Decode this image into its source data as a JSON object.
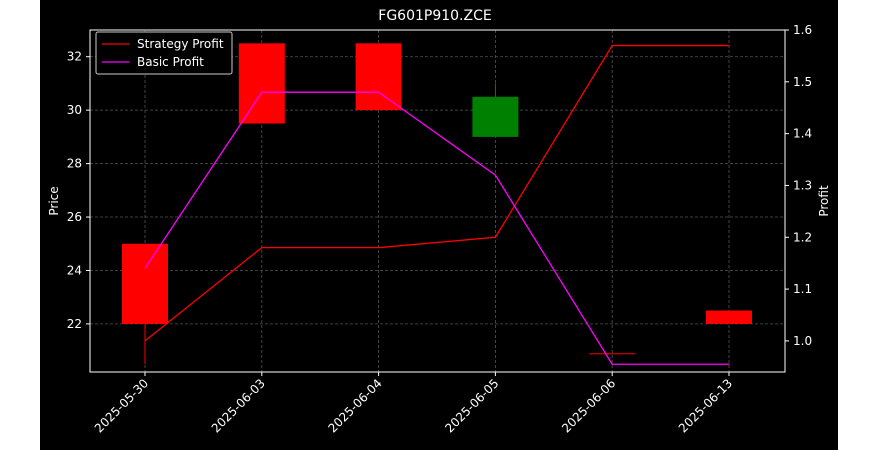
{
  "chart_data": {
    "type": "candlestick",
    "title": "FG601P910.ZCE",
    "ylabel": "Price",
    "ylabel_right": "Profit",
    "categories": [
      "2025-05-30",
      "2025-06-03",
      "2025-06-04",
      "2025-06-05",
      "2025-06-06",
      "2025-06-13"
    ],
    "ylim": [
      20.2,
      33.0
    ],
    "ylim_right": [
      0.94,
      1.6
    ],
    "yticks": [
      22,
      24,
      26,
      28,
      30,
      32
    ],
    "yticks_right": [
      1.0,
      1.1,
      1.2,
      1.3,
      1.4,
      1.5,
      1.6
    ],
    "grid": true,
    "legend_position": "top-left",
    "candles": [
      {
        "date": "2025-05-30",
        "open": 25.0,
        "close": 22.0,
        "high": 25.0,
        "low": 20.5,
        "color": "#ff0000"
      },
      {
        "date": "2025-06-03",
        "open": 32.5,
        "close": 29.5,
        "high": 32.5,
        "low": 29.5,
        "color": "#ff0000"
      },
      {
        "date": "2025-06-04",
        "open": 32.5,
        "close": 30.0,
        "high": 32.5,
        "low": 30.0,
        "color": "#ff0000"
      },
      {
        "date": "2025-06-05",
        "open": 29.0,
        "close": 30.5,
        "high": 31.0,
        "low": 29.0,
        "color": "#008000"
      },
      {
        "date": "2025-06-06",
        "open": 20.9,
        "close": 20.9,
        "high": 20.9,
        "low": 20.9,
        "color": "#ff0000"
      },
      {
        "date": "2025-06-13",
        "open": 22.5,
        "close": 22.0,
        "high": 22.5,
        "low": 22.0,
        "color": "#ff0000"
      }
    ],
    "series": [
      {
        "name": "Strategy Profit",
        "color": "#ff0000",
        "values": [
          1.0,
          1.18,
          1.18,
          1.2,
          1.57,
          1.57
        ]
      },
      {
        "name": "Basic Profit",
        "color": "#ff00ff",
        "values": [
          1.14,
          1.48,
          1.48,
          1.32,
          0.955,
          0.955
        ]
      }
    ]
  }
}
